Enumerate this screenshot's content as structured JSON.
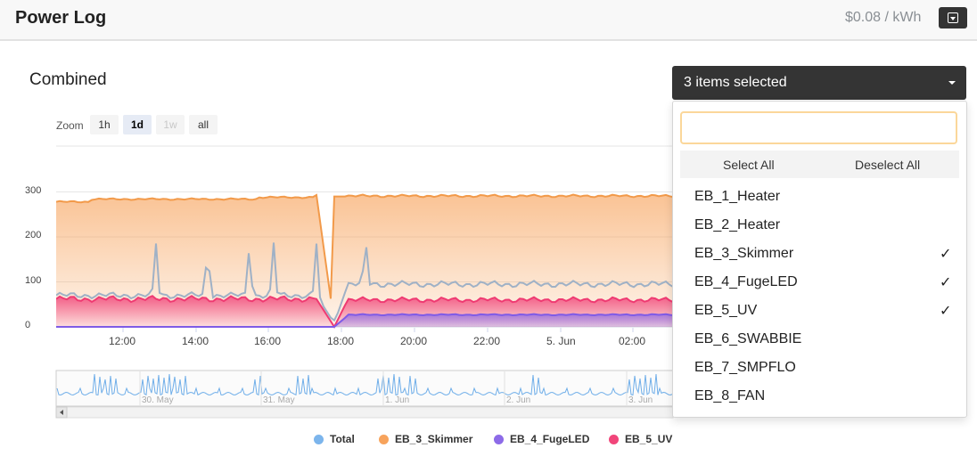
{
  "header": {
    "title": "Power Log",
    "rate": "$0.08 / kWh",
    "menu_icon": "dropdown-square-icon"
  },
  "section": {
    "title": "Combined"
  },
  "zoom": {
    "label": "Zoom",
    "buttons": [
      {
        "label": "1h",
        "state": "normal"
      },
      {
        "label": "1d",
        "state": "active"
      },
      {
        "label": "1w",
        "state": "disabled"
      },
      {
        "label": "all",
        "state": "normal"
      }
    ]
  },
  "chart_data": {
    "type": "area",
    "y_ticks": [
      "300",
      "200",
      "100",
      "0"
    ],
    "ylim": [
      0,
      310
    ],
    "x_ticks": [
      "12:00",
      "14:00",
      "16:00",
      "18:00",
      "20:00",
      "22:00",
      "5. Jun",
      "02:00"
    ],
    "navigator_ticks": [
      "30. May",
      "31. May",
      "1. Jun",
      "2. Jun",
      "3. Jun"
    ],
    "series": [
      {
        "name": "Total",
        "color": "#7cb5ec"
      },
      {
        "name": "EB_3_Skimmer",
        "color": "#f7a35c"
      },
      {
        "name": "EB_4_FugeLED",
        "color": "#8d6be8"
      },
      {
        "name": "EB_5_UV",
        "color": "#f1457a"
      }
    ],
    "grid": true,
    "legend_position": "bottom"
  },
  "multiselect": {
    "button_label": "3 items selected",
    "search_placeholder": "",
    "select_all": "Select All",
    "deselect_all": "Deselect All",
    "options": [
      {
        "label": "EB_1_Heater",
        "checked": false
      },
      {
        "label": "EB_2_Heater",
        "checked": false
      },
      {
        "label": "EB_3_Skimmer",
        "checked": true
      },
      {
        "label": "EB_4_FugeLED",
        "checked": true
      },
      {
        "label": "EB_5_UV",
        "checked": true
      },
      {
        "label": "EB_6_SWABBIE",
        "checked": false
      },
      {
        "label": "EB_7_SMPFLO",
        "checked": false
      },
      {
        "label": "EB_8_FAN",
        "checked": false
      }
    ],
    "check_glyph": "✓"
  }
}
